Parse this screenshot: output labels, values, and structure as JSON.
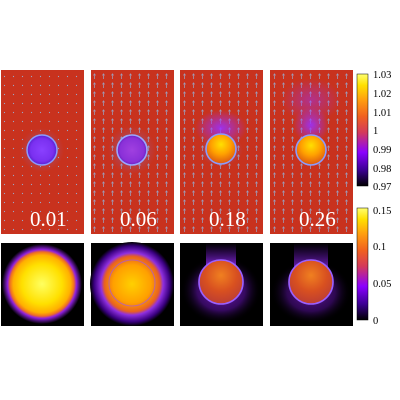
{
  "figure": {
    "time_labels": [
      "0.01",
      "0.06",
      "0.18",
      "0.26"
    ],
    "top_colorbar": {
      "ticks": [
        "1.03",
        "1.02",
        "1.01",
        "1",
        "0.99",
        "0.98",
        "0.97"
      ],
      "colormap": [
        "#000000",
        "#3a0090",
        "#8a00ff",
        "#d43a5a",
        "#f06020",
        "#ff9a10",
        "#ffe000",
        "#ffff70"
      ]
    },
    "bottom_colorbar": {
      "ticks": [
        "0.15",
        "0.1",
        "0.05",
        "0"
      ],
      "colormap": [
        "#000000",
        "#3a0090",
        "#8a00ff",
        "#d43a5a",
        "#f06020",
        "#ff9a10",
        "#ffe000",
        "#ffff70"
      ]
    },
    "colors": {
      "background_field": "#c8321e",
      "arrows": "#8a9ab8",
      "bubble_core": "#ffb000",
      "bubble_rim": "#7a5cff",
      "dark_bg": "#000000"
    }
  }
}
